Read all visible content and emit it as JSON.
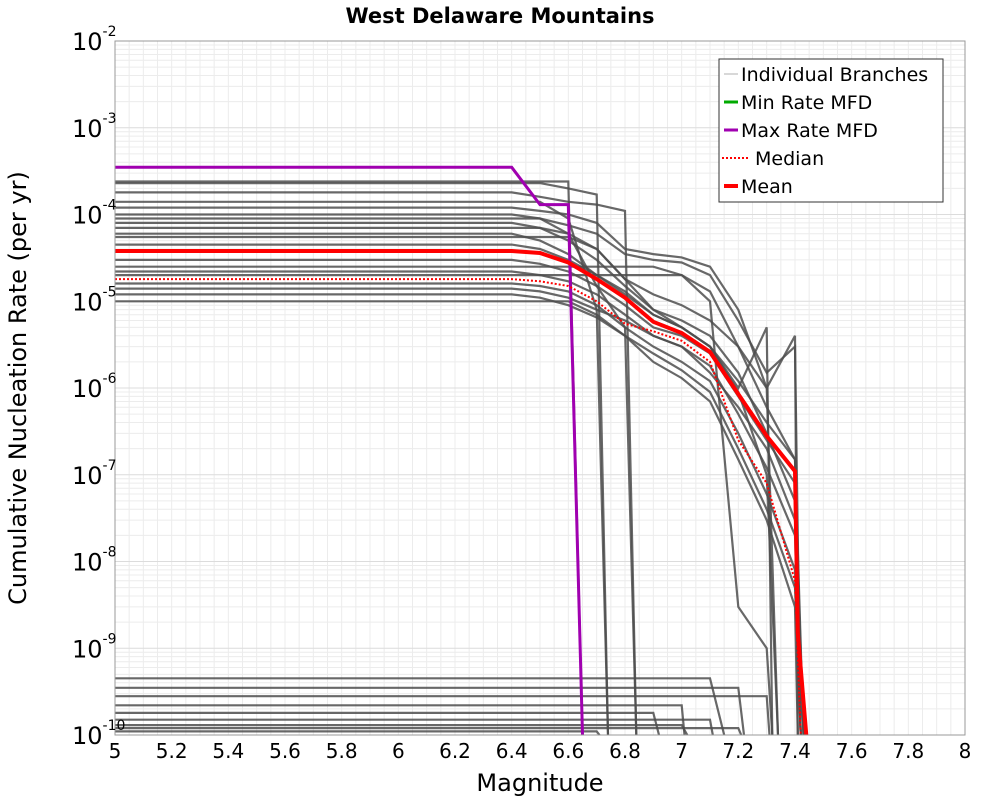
{
  "chart_data": {
    "type": "line",
    "title": "West Delaware Mountains",
    "xlabel": "Magnitude",
    "ylabel": "Cumulative Nucleation Rate (per yr)",
    "xlim": [
      5,
      8
    ],
    "ylim_log10": [
      -10,
      -2
    ],
    "x_ticks": [
      "5",
      "5.2",
      "5.4",
      "5.6",
      "5.8",
      "6",
      "6.2",
      "6.4",
      "6.6",
      "6.8",
      "7",
      "7.2",
      "7.4",
      "7.6",
      "7.8",
      "8"
    ],
    "y_ticks": [
      {
        "base": "10",
        "exp": "-2"
      },
      {
        "base": "10",
        "exp": "-3"
      },
      {
        "base": "10",
        "exp": "-4"
      },
      {
        "base": "10",
        "exp": "-5"
      },
      {
        "base": "10",
        "exp": "-6"
      },
      {
        "base": "10",
        "exp": "-7"
      },
      {
        "base": "10",
        "exp": "-8"
      },
      {
        "base": "10",
        "exp": "-9"
      },
      {
        "base": "10",
        "exp": "-10"
      }
    ],
    "grid": true,
    "legend_position": "top-right",
    "legend": [
      {
        "label": "Individual Branches",
        "color": "#b0b0b0",
        "style": "solid-thin"
      },
      {
        "label": "Min Rate MFD",
        "color": "#00aa00",
        "style": "solid"
      },
      {
        "label": "Max Rate MFD",
        "color": "#a000b0",
        "style": "solid"
      },
      {
        "label": "Median",
        "color": "#ff0000",
        "style": "dotted"
      },
      {
        "label": "Mean",
        "color": "#ff0000",
        "style": "solid-thick"
      }
    ],
    "series": [
      {
        "name": "Max Rate MFD",
        "color": "#a000b0",
        "x": [
          5.0,
          6.4,
          6.5,
          6.6,
          6.65
        ],
        "y": [
          0.00035,
          0.00035,
          0.00013,
          0.00013,
          1e-10
        ]
      },
      {
        "name": "Mean",
        "color": "#ff0000",
        "x": [
          5.0,
          6.4,
          6.5,
          6.6,
          6.7,
          6.8,
          6.9,
          7.0,
          7.1,
          7.2,
          7.3,
          7.4,
          7.41,
          7.44
        ],
        "y": [
          3.8e-05,
          3.8e-05,
          3.6e-05,
          2.8e-05,
          1.8e-05,
          1.1e-05,
          5.8e-06,
          4.3e-06,
          2.6e-06,
          8.5e-07,
          2.8e-07,
          1.1e-07,
          1.5e-09,
          1e-10
        ]
      },
      {
        "name": "Median",
        "color": "#ff0000",
        "x": [
          5.0,
          6.4,
          6.5,
          6.6,
          6.7,
          6.8,
          6.9,
          7.0,
          7.1,
          7.2,
          7.3,
          7.4,
          7.42
        ],
        "y": [
          1.8e-05,
          1.8e-05,
          1.7e-05,
          1.5e-05,
          1e-05,
          5.5e-06,
          4.5e-06,
          3.5e-06,
          2e-06,
          2.5e-07,
          8e-08,
          6e-09,
          1e-10
        ]
      }
    ],
    "branches": [
      {
        "x": [
          5.0,
          6.6,
          6.65
        ],
        "y": [
          0.00024,
          0.00024,
          1e-10
        ]
      },
      {
        "x": [
          5.0,
          6.4,
          6.5,
          6.6,
          6.7,
          6.74
        ],
        "y": [
          0.00023,
          0.00023,
          0.00023,
          0.0002,
          0.00017,
          1e-10
        ]
      },
      {
        "x": [
          5.0,
          6.4,
          6.5,
          6.6,
          6.7,
          6.8,
          6.84
        ],
        "y": [
          0.00018,
          0.00018,
          0.00016,
          0.00014,
          0.00013,
          0.00011,
          1e-10
        ]
      },
      {
        "x": [
          5.0,
          6.4,
          6.5,
          6.6,
          6.7,
          6.8,
          6.9,
          7.0,
          7.1,
          7.2,
          7.3,
          7.34
        ],
        "y": [
          0.00012,
          0.00012,
          0.00011,
          0.0001,
          8e-05,
          4e-05,
          3.5e-05,
          3.2e-05,
          2.5e-05,
          8e-06,
          1e-06,
          1e-10
        ]
      },
      {
        "x": [
          5.0,
          6.4,
          6.5,
          6.6,
          6.7,
          6.8,
          6.9,
          7.0,
          7.1,
          7.2,
          7.3,
          7.4,
          7.42
        ],
        "y": [
          0.0001,
          0.0001,
          9e-05,
          7.5e-05,
          6e-05,
          3.5e-05,
          3e-05,
          2.8e-05,
          2e-05,
          6e-06,
          1.5e-06,
          3e-06,
          1e-10
        ]
      },
      {
        "x": [
          5.0,
          6.4,
          6.5,
          6.6,
          6.7,
          6.8,
          6.9,
          7.0,
          7.1,
          7.2,
          7.3,
          7.4,
          7.42
        ],
        "y": [
          8e-05,
          8e-05,
          7e-05,
          5e-05,
          3e-05,
          1.5e-05,
          8e-06,
          6e-06,
          4e-06,
          1.5e-06,
          3e-07,
          5e-08,
          1e-10
        ]
      },
      {
        "x": [
          5.0,
          6.4,
          6.5,
          6.6,
          6.7,
          6.8,
          6.9,
          7.0,
          7.1,
          7.2,
          7.3,
          7.34
        ],
        "y": [
          6e-05,
          6e-05,
          5e-05,
          3.5e-05,
          2e-05,
          1.2e-05,
          7e-06,
          5e-06,
          3e-06,
          9e-07,
          1e-07,
          1e-10
        ]
      },
      {
        "x": [
          5.0,
          6.4,
          6.5,
          6.6,
          6.7,
          6.8,
          6.9,
          7.0,
          7.1,
          7.2,
          7.3,
          7.4,
          7.43
        ],
        "y": [
          4.5e-05,
          4.5e-05,
          4e-05,
          3e-05,
          2e-05,
          1.3e-05,
          7e-06,
          5e-06,
          3e-06,
          1.2e-06,
          4e-07,
          1.5e-07,
          1e-10
        ]
      },
      {
        "x": [
          5.0,
          6.4,
          6.5,
          6.6,
          6.7,
          6.8,
          6.9,
          7.0,
          7.1,
          7.2,
          7.3,
          7.4,
          7.43
        ],
        "y": [
          3e-05,
          3e-05,
          2.7e-05,
          2.2e-05,
          1.5e-05,
          9e-06,
          5e-06,
          4e-06,
          2.5e-06,
          8e-07,
          2.5e-07,
          8e-08,
          1e-10
        ]
      },
      {
        "x": [
          5.0,
          6.4,
          6.5,
          6.6,
          6.7,
          6.8,
          6.9,
          7.0,
          7.1,
          7.2,
          7.3,
          7.4,
          7.42
        ],
        "y": [
          2.2e-05,
          2.2e-05,
          2e-05,
          1.7e-05,
          1.2e-05,
          7e-06,
          4e-06,
          3e-06,
          1.8e-06,
          5e-07,
          1.2e-07,
          2e-08,
          1e-10
        ]
      },
      {
        "x": [
          5.0,
          6.4,
          6.5,
          6.6,
          6.7,
          6.8,
          6.9,
          7.0,
          7.1,
          7.2,
          7.3,
          7.4,
          7.42
        ],
        "y": [
          1.6e-05,
          1.6e-05,
          1.5e-05,
          1.3e-05,
          9e-06,
          5e-06,
          3e-06,
          2e-06,
          1.2e-06,
          3e-07,
          6e-08,
          8e-09,
          1e-10
        ]
      },
      {
        "x": [
          5.0,
          6.4,
          6.5,
          6.6,
          6.7,
          6.8,
          6.9,
          7.0,
          7.1,
          7.2,
          7.3,
          7.4,
          7.42
        ],
        "y": [
          1.2e-05,
          1.2e-05,
          1.1e-05,
          9e-06,
          6.5e-06,
          4e-06,
          2.5e-06,
          1.6e-06,
          9e-07,
          2e-07,
          4e-08,
          5e-09,
          1e-10
        ]
      },
      {
        "x": [
          5.0,
          6.6,
          6.7,
          6.8,
          6.9,
          7.0,
          7.1,
          7.2,
          7.3,
          7.4,
          7.41
        ],
        "y": [
          1e-05,
          1e-05,
          7e-06,
          4e-06,
          2e-06,
          1.3e-06,
          7e-07,
          1.5e-07,
          3e-08,
          3e-09,
          1e-10
        ]
      },
      {
        "x": [
          5.0,
          6.5,
          6.6,
          6.7,
          6.74
        ],
        "y": [
          0.00014,
          0.00014,
          9e-05,
          8e-06,
          1e-10
        ]
      },
      {
        "x": [
          5.0,
          6.5,
          6.6,
          6.7,
          6.8,
          6.84
        ],
        "y": [
          9e-05,
          9e-05,
          6e-05,
          1.5e-05,
          5e-06,
          1e-10
        ]
      },
      {
        "x": [
          5.0,
          6.5,
          6.6,
          6.7,
          6.8,
          6.9,
          7.0,
          7.1,
          7.2,
          7.3,
          7.4,
          7.41
        ],
        "y": [
          7e-05,
          7e-05,
          6e-05,
          4e-05,
          1.8e-05,
          1.2e-05,
          9e-06,
          6e-06,
          3e-06,
          1e-06,
          4e-06,
          1e-10
        ]
      },
      {
        "x": [
          5.0,
          6.6,
          6.7,
          6.8,
          6.9,
          7.0,
          7.1,
          7.2,
          7.3,
          7.32
        ],
        "y": [
          5.5e-05,
          5.5e-05,
          4e-05,
          1.8e-05,
          8e-06,
          5e-06,
          3e-06,
          1e-06,
          5e-06,
          1e-10
        ]
      },
      {
        "x": [
          5.0,
          6.9,
          7.0,
          7.1,
          7.2,
          7.3,
          7.4,
          7.42
        ],
        "y": [
          2.5e-05,
          2.5e-05,
          2e-05,
          1.3e-05,
          3e-06,
          6e-07,
          1.5e-07,
          1e-10
        ]
      },
      {
        "x": [
          5.0,
          7.0,
          7.1,
          7.2,
          7.3,
          7.32
        ],
        "y": [
          2e-05,
          2e-05,
          1e-05,
          3e-09,
          1e-09,
          1e-10
        ]
      },
      {
        "x": [
          5.0,
          6.4,
          6.5,
          6.6,
          6.7,
          6.8,
          6.9,
          7.0,
          7.1,
          7.2,
          7.3,
          7.4,
          7.43
        ],
        "y": [
          1.4e-05,
          1.4e-05,
          1.3e-05,
          1.1e-05,
          8e-06,
          6e-06,
          4e-06,
          3e-06,
          1.5e-06,
          6e-07,
          2e-07,
          3e-08,
          1e-10
        ]
      },
      {
        "x": [
          5.0,
          7.1,
          7.15
        ],
        "y": [
          4.5e-10,
          4.5e-10,
          1e-10
        ]
      },
      {
        "x": [
          5.0,
          7.2,
          7.22
        ],
        "y": [
          3.5e-10,
          3.5e-10,
          1e-10
        ]
      },
      {
        "x": [
          5.0,
          7.3,
          7.31
        ],
        "y": [
          2.8e-10,
          2.8e-10,
          1e-10
        ]
      },
      {
        "x": [
          5.0,
          7.0,
          7.01
        ],
        "y": [
          2.2e-10,
          2.2e-10,
          1e-10
        ]
      },
      {
        "x": [
          5.0,
          6.9,
          6.92
        ],
        "y": [
          1.8e-10,
          1.8e-10,
          1e-10
        ]
      },
      {
        "x": [
          5.0,
          7.1,
          7.11
        ],
        "y": [
          1.5e-10,
          1.5e-10,
          1e-10
        ]
      },
      {
        "x": [
          5.0,
          7.0,
          7.02
        ],
        "y": [
          1.3e-10,
          1.3e-10,
          1e-10
        ]
      },
      {
        "x": [
          5.0,
          7.2,
          7.21
        ],
        "y": [
          1.2e-10,
          1.2e-10,
          1e-10
        ]
      },
      {
        "x": [
          5.0,
          6.7,
          6.71
        ],
        "y": [
          1.1e-10,
          1.1e-10,
          1e-10
        ]
      }
    ]
  }
}
